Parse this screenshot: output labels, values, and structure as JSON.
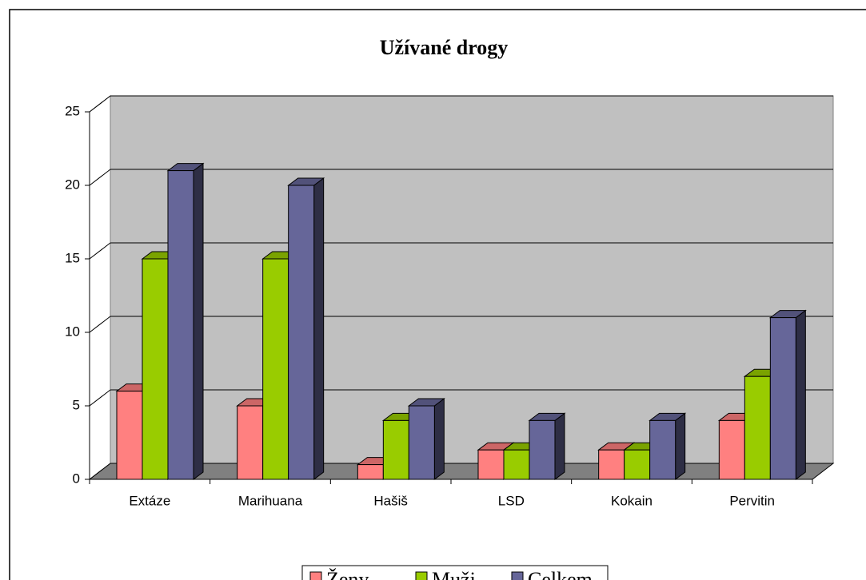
{
  "chart_data": {
    "type": "bar3d",
    "title": "Užívané drogy",
    "categories": [
      "Extáze",
      "Marihuana",
      "Hašiš",
      "LSD",
      "Kokain",
      "Pervitin"
    ],
    "series": [
      {
        "name": "Ženy",
        "color": "#ff8080",
        "values": [
          6,
          5,
          1,
          2,
          2,
          4
        ]
      },
      {
        "name": "Muži",
        "color": "#99cc00",
        "values": [
          15,
          15,
          4,
          2,
          2,
          7
        ]
      },
      {
        "name": "Celkem",
        "color": "#666699",
        "values": [
          21,
          20,
          5,
          4,
          4,
          11
        ]
      }
    ],
    "ylim": [
      0,
      25
    ],
    "yticks": [
      0,
      5,
      10,
      15,
      20,
      25
    ],
    "grid": true,
    "legend": "bottom"
  }
}
